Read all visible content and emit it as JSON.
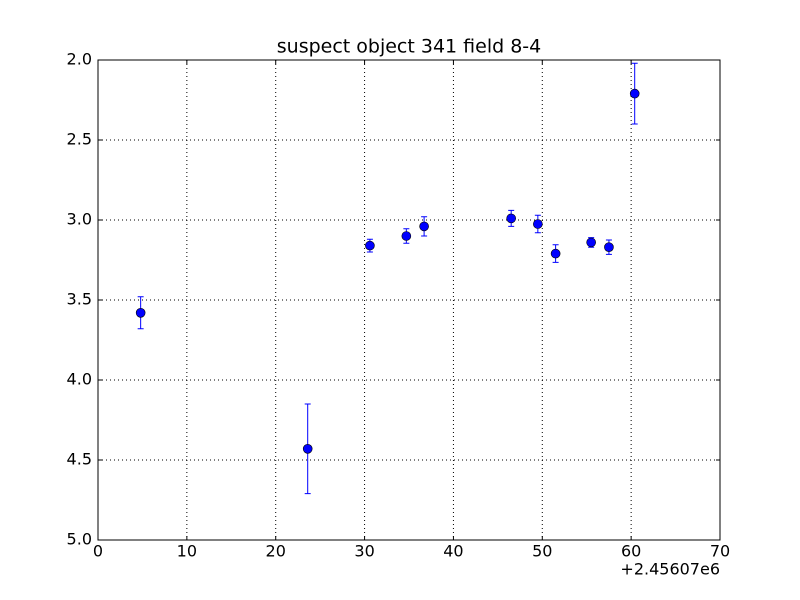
{
  "chart_data": {
    "type": "errorbar",
    "title": "suspect object 341 field 8-4",
    "x": [
      4.8,
      23.6,
      30.6,
      34.7,
      36.7,
      46.5,
      49.5,
      51.5,
      55.5,
      57.5,
      60.4
    ],
    "series": [
      {
        "color": "#0000ff",
        "values": [
          3.58,
          4.43,
          3.16,
          3.1,
          3.04,
          2.99,
          3.025,
          3.21,
          3.14,
          3.17,
          2.21
        ],
        "errors": [
          0.1,
          0.28,
          0.04,
          0.045,
          0.06,
          0.05,
          0.055,
          0.055,
          0.03,
          0.045,
          0.19
        ]
      }
    ],
    "xlim": [
      0,
      70
    ],
    "xticks": [
      0,
      10,
      20,
      30,
      40,
      50,
      60,
      70
    ],
    "x_offset_label": "+2.45607e6",
    "ylim": [
      2,
      5
    ],
    "y_inverted": true,
    "yticks": [
      {
        "value": 2,
        "label": "2.0"
      },
      {
        "value": 2.5,
        "label": "2.5"
      },
      {
        "value": 3,
        "label": "3.0"
      },
      {
        "value": 3.5,
        "label": "3.5"
      },
      {
        "value": 4,
        "label": "4.0"
      },
      {
        "value": 4.5,
        "label": "4.5"
      },
      {
        "value": 5,
        "label": "5.0"
      }
    ],
    "grid": true
  }
}
